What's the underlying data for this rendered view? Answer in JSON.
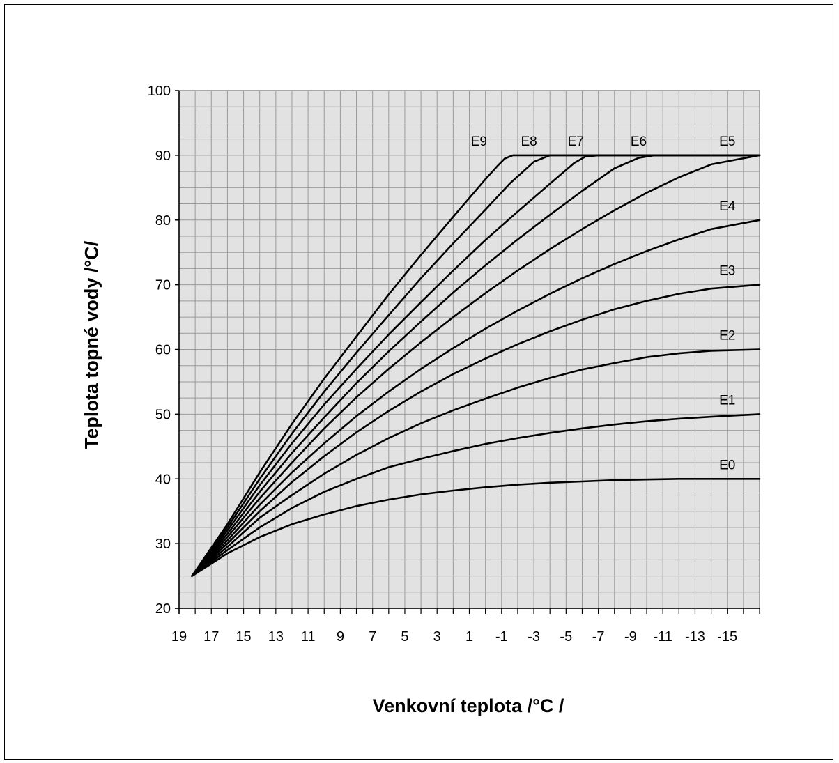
{
  "chart_data": {
    "type": "line",
    "title": "",
    "xlabel": "Venkovní teplota /°C /",
    "ylabel": "Teplota topné vody  /°C/",
    "xlim": [
      19,
      -17
    ],
    "ylim": [
      20,
      100
    ],
    "x_reversed": true,
    "grid": true,
    "legend": "inline labels at line ends",
    "y_ticks": [
      "20",
      "30",
      "40",
      "50",
      "60",
      "70",
      "80",
      "90",
      "100"
    ],
    "x_ticks": [
      "19",
      "17",
      "15",
      "13",
      "11",
      "9",
      "7",
      "5",
      "3",
      "1",
      "-1",
      "-3",
      "-5",
      "-7",
      "-9",
      "-11",
      "-13",
      "-15"
    ],
    "colors": {
      "plot_bg": "#e2e2e2",
      "grid": "#9a9a9a",
      "border": "#8c8c8c",
      "line": "#000000"
    },
    "series": [
      {
        "name": "E0",
        "label_at": [
          -15,
          41.5
        ],
        "x": [
          18.2,
          16,
          14,
          12,
          10,
          8,
          6,
          4,
          2,
          0,
          -2,
          -4,
          -6,
          -8,
          -10,
          -12,
          -14,
          -17
        ],
        "y": [
          25,
          28.5,
          31,
          33,
          34.5,
          35.8,
          36.8,
          37.6,
          38.2,
          38.7,
          39.1,
          39.4,
          39.6,
          39.8,
          39.9,
          40,
          40,
          40
        ]
      },
      {
        "name": "E1",
        "label_at": [
          -15,
          51.5
        ],
        "x": [
          18.2,
          16,
          14,
          12,
          10,
          8,
          6,
          4,
          2,
          0,
          -2,
          -4,
          -6,
          -8,
          -10,
          -12,
          -14,
          -17
        ],
        "y": [
          25,
          29,
          32.5,
          35.5,
          38,
          40,
          41.8,
          43.1,
          44.3,
          45.4,
          46.3,
          47.1,
          47.8,
          48.4,
          48.9,
          49.3,
          49.6,
          50
        ]
      },
      {
        "name": "E2",
        "label_at": [
          -15,
          61.5
        ],
        "x": [
          18.2,
          16,
          14,
          12,
          10,
          8,
          6,
          4,
          2,
          0,
          -2,
          -4,
          -6,
          -8,
          -10,
          -12,
          -14,
          -17
        ],
        "y": [
          25,
          29.5,
          34,
          37.5,
          40.8,
          43.7,
          46.3,
          48.6,
          50.6,
          52.4,
          54.1,
          55.6,
          56.9,
          57.9,
          58.8,
          59.4,
          59.8,
          60
        ]
      },
      {
        "name": "E3",
        "label_at": [
          -15,
          71.5
        ],
        "x": [
          18.2,
          16,
          14,
          12,
          10,
          8,
          6,
          4,
          2,
          0,
          -2,
          -4,
          -6,
          -8,
          -10,
          -12,
          -14,
          -17
        ],
        "y": [
          25,
          30,
          35,
          39.5,
          43.5,
          47.2,
          50.5,
          53.5,
          56.2,
          58.6,
          60.8,
          62.8,
          64.6,
          66.2,
          67.5,
          68.6,
          69.4,
          70
        ]
      },
      {
        "name": "E4",
        "label_at": [
          -15,
          81.5
        ],
        "x": [
          18.2,
          16,
          14,
          12,
          10,
          8,
          6,
          4,
          2,
          0,
          -2,
          -4,
          -6,
          -8,
          -10,
          -12,
          -14,
          -17
        ],
        "y": [
          25,
          30.5,
          36,
          41,
          45.5,
          49.7,
          53.5,
          57,
          60.2,
          63.2,
          66,
          68.6,
          71,
          73.2,
          75.2,
          77,
          78.6,
          80
        ]
      },
      {
        "name": "E5",
        "label_at": [
          -15,
          91.5
        ],
        "x": [
          18.2,
          16,
          14,
          12,
          10,
          8,
          6,
          4,
          2,
          0,
          -2,
          -4,
          -6,
          -8,
          -10,
          -12,
          -14,
          -17
        ],
        "y": [
          25,
          31,
          37,
          42.5,
          47.8,
          52.6,
          57,
          61.1,
          65,
          68.7,
          72.2,
          75.5,
          78.6,
          81.5,
          84.2,
          86.6,
          88.6,
          90
        ]
      },
      {
        "name": "E6",
        "label_at": [
          -9.5,
          91.5
        ],
        "x": [
          18.2,
          16,
          14,
          12,
          10,
          8,
          6,
          4,
          2,
          0,
          -2,
          -4,
          -6,
          -8,
          -9.5,
          -10.5,
          -17
        ],
        "y": [
          25,
          31.5,
          38,
          44,
          49.5,
          54.8,
          59.7,
          64.3,
          68.8,
          73,
          77,
          80.8,
          84.5,
          88,
          89.6,
          90,
          90
        ]
      },
      {
        "name": "E7",
        "label_at": [
          -5.6,
          91.5
        ],
        "x": [
          18.2,
          16,
          14,
          12,
          10,
          8,
          6,
          4,
          2,
          0,
          -2,
          -4,
          -5.5,
          -6.2,
          -7,
          -17
        ],
        "y": [
          25,
          32,
          39,
          45.5,
          51.5,
          57,
          62.3,
          67.3,
          72.2,
          76.9,
          81.3,
          85.6,
          88.8,
          89.8,
          90,
          90
        ]
      },
      {
        "name": "E8",
        "label_at": [
          -2.7,
          91.5
        ],
        "x": [
          18.2,
          16,
          14,
          12,
          10,
          8,
          6,
          4,
          2,
          0,
          -1.5,
          -3,
          -4,
          -17
        ],
        "y": [
          25,
          32.5,
          40,
          47,
          53.5,
          59.5,
          65.3,
          71,
          76.4,
          81.6,
          85.6,
          89,
          90,
          90
        ]
      },
      {
        "name": "E9",
        "label_at": [
          0.4,
          91.5
        ],
        "x": [
          18.2,
          16,
          14,
          12,
          10,
          8,
          6,
          4,
          2,
          0,
          -0.8,
          -1.2,
          -1.7,
          -17
        ],
        "y": [
          25,
          33,
          41,
          48.5,
          55.5,
          62,
          68.5,
          74.6,
          80.5,
          86.3,
          88.5,
          89.5,
          90,
          90
        ]
      }
    ]
  }
}
